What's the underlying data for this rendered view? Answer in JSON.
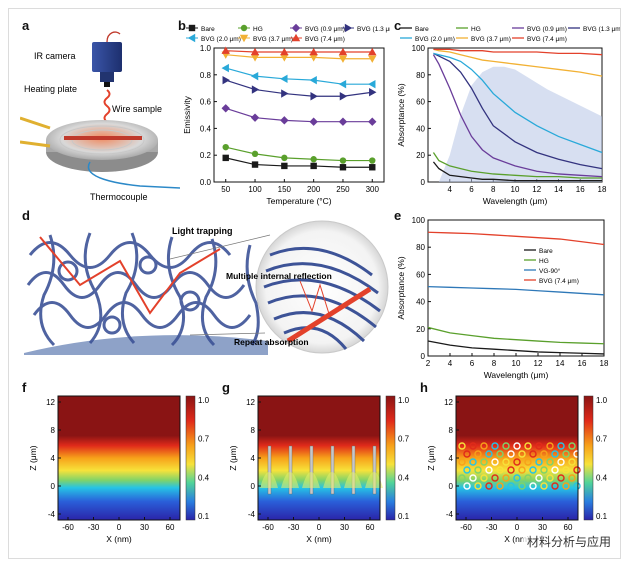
{
  "panels": {
    "a": "a",
    "b": "b",
    "c": "c",
    "d": "d",
    "e": "e",
    "f": "f",
    "g": "g",
    "h": "h"
  },
  "panel_a": {
    "ir_camera": "IR camera",
    "heating_plate": "Heating plate",
    "wire_sample": "Wire sample",
    "thermocouple": "Thermocouple"
  },
  "panel_d": {
    "light_trapping": "Light trapping",
    "multiple_internal_reflection": "Multiple internal reflection",
    "repeat_absorption": "Repeat absorption"
  },
  "colorbar_labels": [
    "1.0",
    "0.7",
    "0.4",
    "0.1"
  ],
  "watermark": "材料分析与应用",
  "chart_data": [
    {
      "id": "b",
      "type": "line",
      "xlabel": "Temperature (°C)",
      "ylabel": "Emissivity",
      "xlim": [
        30,
        320
      ],
      "ylim": [
        0.0,
        1.0
      ],
      "xticks": [
        "50",
        "100",
        "150",
        "200",
        "250",
        "300"
      ],
      "yticks": [
        "0.0",
        "0.2",
        "0.4",
        "0.6",
        "0.8",
        "1.0"
      ],
      "x": [
        50,
        100,
        150,
        200,
        250,
        300
      ],
      "series": [
        {
          "name": "Bare",
          "color": "#1a1a1a",
          "marker": "square",
          "values": [
            0.18,
            0.13,
            0.12,
            0.12,
            0.11,
            0.11
          ]
        },
        {
          "name": "HG",
          "color": "#5aa02c",
          "marker": "circle",
          "values": [
            0.26,
            0.21,
            0.18,
            0.17,
            0.16,
            0.16
          ]
        },
        {
          "name": "BVG (0.9 μm)",
          "color": "#6a3d9a",
          "marker": "diamond",
          "values": [
            0.55,
            0.48,
            0.46,
            0.45,
            0.45,
            0.45
          ]
        },
        {
          "name": "BVG (1.3 μm)",
          "color": "#33337f",
          "marker": "triangle-right",
          "values": [
            0.76,
            0.69,
            0.66,
            0.64,
            0.64,
            0.67
          ]
        },
        {
          "name": "BVG (2.0 μm)",
          "color": "#29a9d9",
          "marker": "triangle-left",
          "values": [
            0.85,
            0.79,
            0.77,
            0.76,
            0.73,
            0.73
          ]
        },
        {
          "name": "BVG (3.7 μm)",
          "color": "#f2b134",
          "marker": "triangle-down",
          "values": [
            0.95,
            0.93,
            0.93,
            0.93,
            0.92,
            0.92
          ]
        },
        {
          "name": "BVG (7.4 μm)",
          "color": "#e3412b",
          "marker": "triangle-up",
          "values": [
            0.98,
            0.97,
            0.97,
            0.97,
            0.97,
            0.97
          ]
        }
      ]
    },
    {
      "id": "c",
      "type": "line",
      "xlabel": "Wavelength (μm)",
      "ylabel": "Absorptance (%)",
      "xlim": [
        2,
        18
      ],
      "ylim": [
        0,
        100
      ],
      "xticks": [
        "4",
        "6",
        "8",
        "10",
        "12",
        "14",
        "16",
        "18"
      ],
      "yticks": [
        "0",
        "20",
        "40",
        "60",
        "80",
        "100"
      ],
      "legend": [
        "Bare",
        "HG",
        "BVG (0.9 μm)",
        "BVG (1.3 μm)",
        "BVG (2.0 μm)",
        "BVG (3.7 μm)",
        "BVG (7.4 μm)"
      ],
      "shaded_band": {
        "x": [
          3,
          4,
          5,
          6,
          7,
          8,
          9,
          10,
          11,
          12,
          13,
          14,
          15,
          16,
          17,
          18
        ],
        "y": [
          0,
          20,
          50,
          72,
          82,
          86,
          86,
          84,
          79,
          74,
          69,
          65,
          61,
          57,
          53,
          49
        ]
      },
      "series": [
        {
          "name": "Bare",
          "color": "#1a1a1a",
          "x": [
            2.5,
            3,
            4,
            5,
            6,
            7,
            8,
            10,
            12,
            14,
            16,
            18
          ],
          "values": [
            15,
            10,
            5,
            4,
            3,
            2,
            2,
            1,
            1,
            1,
            1,
            1
          ]
        },
        {
          "name": "HG",
          "color": "#5aa02c",
          "x": [
            2.5,
            3,
            4,
            5,
            6,
            7,
            8,
            10,
            12,
            14,
            16,
            18
          ],
          "values": [
            22,
            16,
            12,
            10,
            8,
            7,
            6,
            5,
            4,
            4,
            3,
            3
          ]
        },
        {
          "name": "BVG (0.9 μm)",
          "color": "#6a3d9a",
          "x": [
            2.5,
            3,
            4,
            5,
            6,
            7,
            8,
            10,
            12,
            14,
            16,
            18
          ],
          "values": [
            95,
            88,
            70,
            50,
            34,
            24,
            18,
            12,
            8,
            6,
            5,
            4
          ]
        },
        {
          "name": "BVG (1.3 μm)",
          "color": "#33337f",
          "x": [
            2.5,
            3,
            4,
            5,
            6,
            7,
            8,
            10,
            12,
            14,
            16,
            18
          ],
          "values": [
            96,
            94,
            90,
            82,
            70,
            55,
            42,
            30,
            22,
            17,
            13,
            10
          ]
        },
        {
          "name": "BVG (2.0 μm)",
          "color": "#29a9d9",
          "x": [
            2.5,
            3,
            4,
            5,
            6,
            7,
            8,
            10,
            12,
            14,
            16,
            18
          ],
          "values": [
            96,
            95,
            93,
            90,
            84,
            76,
            66,
            52,
            42,
            34,
            28,
            22
          ]
        },
        {
          "name": "BVG (3.7 μm)",
          "color": "#f2b134",
          "x": [
            2.5,
            3,
            4,
            5,
            6,
            7,
            8,
            10,
            12,
            14,
            16,
            18
          ],
          "values": [
            99,
            98,
            97,
            95,
            93,
            91,
            90,
            88,
            86,
            84,
            82,
            79
          ]
        },
        {
          "name": "BVG (7.4 μm)",
          "color": "#e3412b",
          "x": [
            2.5,
            3,
            4,
            5,
            6,
            7,
            8,
            10,
            12,
            14,
            16,
            18
          ],
          "values": [
            99,
            99,
            99,
            98,
            98,
            98,
            97,
            97,
            97,
            96,
            96,
            95
          ]
        }
      ]
    },
    {
      "id": "e",
      "type": "line",
      "xlabel": "Wavelength (μm)",
      "ylabel": "Absorptance (%)",
      "xlim": [
        2,
        18
      ],
      "ylim": [
        0,
        100
      ],
      "xticks": [
        "2",
        "4",
        "6",
        "8",
        "10",
        "12",
        "14",
        "16",
        "18"
      ],
      "yticks": [
        "0",
        "20",
        "40",
        "60",
        "80",
        "100"
      ],
      "series": [
        {
          "name": "Bare",
          "color": "#1a1a1a",
          "x": [
            2,
            4,
            6,
            8,
            10,
            12,
            14,
            16,
            18
          ],
          "values": [
            11,
            8,
            6,
            5,
            4,
            3,
            2.5,
            2,
            1.5
          ]
        },
        {
          "name": "HG",
          "color": "#5aa02c",
          "x": [
            2,
            4,
            6,
            8,
            10,
            12,
            14,
            16,
            18
          ],
          "values": [
            21,
            17,
            15,
            13,
            12,
            11,
            10,
            9.5,
            9
          ]
        },
        {
          "name": "VG-90°",
          "color": "#2e78b8",
          "x": [
            2,
            4,
            6,
            8,
            10,
            12,
            14,
            16,
            18
          ],
          "values": [
            51,
            50.5,
            50,
            49.5,
            49,
            48,
            47,
            46,
            45
          ]
        },
        {
          "name": "BVG (7.4 μm)",
          "color": "#e3412b",
          "x": [
            2,
            4,
            6,
            8,
            10,
            12,
            14,
            16,
            18
          ],
          "values": [
            91,
            90.5,
            90,
            89,
            88,
            87,
            86,
            84,
            82
          ]
        }
      ]
    },
    {
      "id": "f",
      "type": "heatmap",
      "xlabel": "X (nm)",
      "ylabel": "Z (μm)",
      "xticks": [
        "-60",
        "-30",
        "0",
        "30",
        "60"
      ],
      "yticks": [
        "12",
        "8",
        "4",
        "0",
        "-4"
      ],
      "colorbar": [
        "1.0",
        "0.7",
        "0.4",
        "0.1"
      ]
    },
    {
      "id": "g",
      "type": "heatmap",
      "xlabel": "X (nm)",
      "ylabel": "Z (μm)",
      "xticks": [
        "-60",
        "-30",
        "0",
        "30",
        "60"
      ],
      "yticks": [
        "12",
        "8",
        "4",
        "0",
        "-4"
      ],
      "colorbar": [
        "1.0",
        "0.7",
        "0.4",
        "0.1"
      ]
    },
    {
      "id": "h",
      "type": "heatmap",
      "xlabel": "X (nm)",
      "ylabel": "Z (μm)",
      "xticks": [
        "-60",
        "-30",
        "0",
        "30",
        "60"
      ],
      "yticks": [
        "12",
        "8",
        "4",
        "0",
        "-4"
      ],
      "colorbar": [
        "1.0",
        "0.7",
        "0.4",
        "0.1"
      ]
    }
  ]
}
